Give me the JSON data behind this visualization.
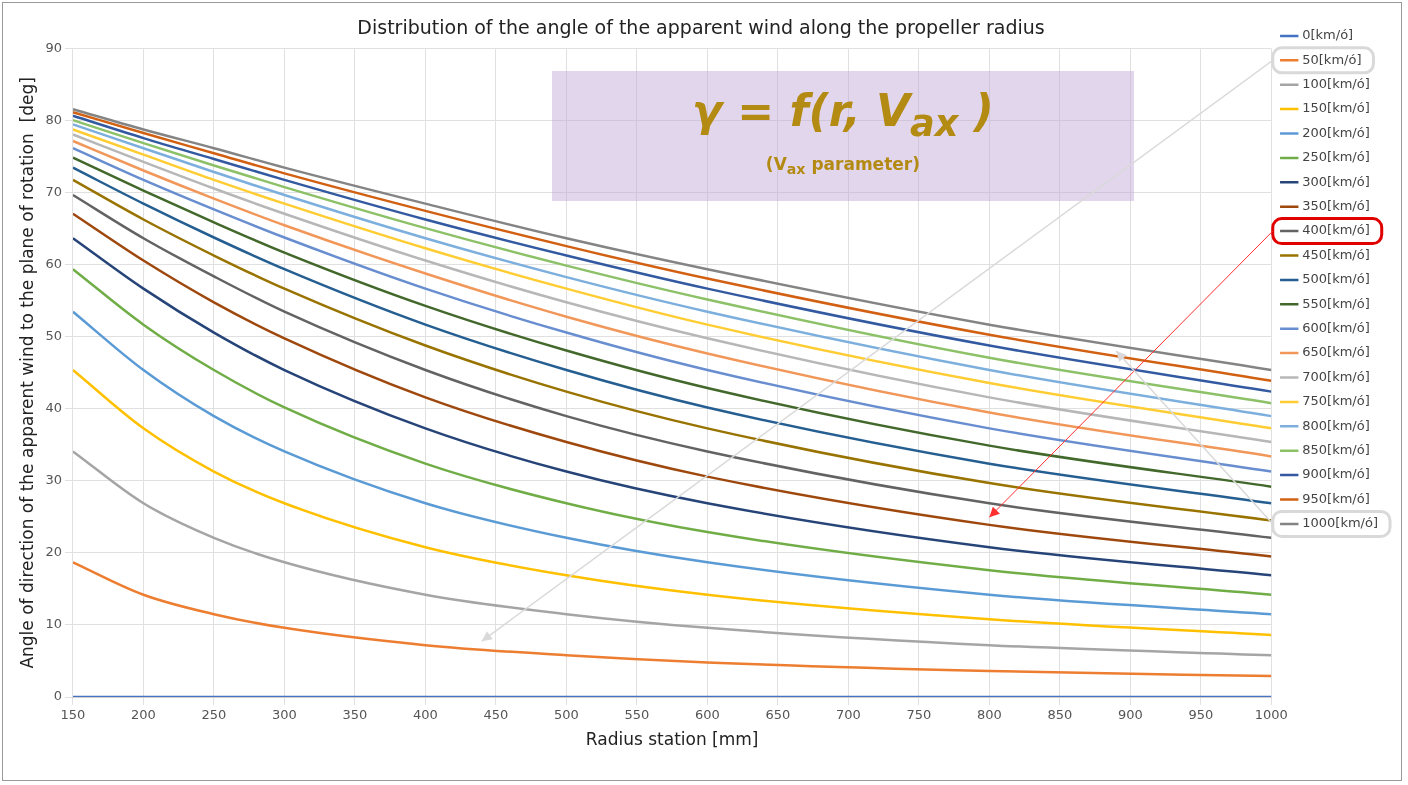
{
  "chart_data": {
    "type": "line",
    "title": "Distribution of the angle of the apparent wind along the propeller radius",
    "xlabel": "Radius station [mm]",
    "ylabel": "Angle of direction of the apparent wind to the plane of rotation  [deg]",
    "annotations": [
      "γ = f(r, V$_{ax}$ )",
      "(V$_{ax}$ parameter)"
    ],
    "x": [
      150,
      200,
      250,
      300,
      400,
      500,
      600,
      800,
      1000
    ],
    "xlim": [
      150,
      1000
    ],
    "xticks": [
      150,
      200,
      250,
      300,
      350,
      400,
      450,
      500,
      550,
      600,
      650,
      700,
      750,
      800,
      850,
      900,
      950,
      1000
    ],
    "ylim": [
      0,
      90
    ],
    "yticks": [
      0,
      10,
      20,
      30,
      40,
      50,
      60,
      70,
      80,
      90
    ],
    "grid": true,
    "legend": "right",
    "marker": "none",
    "line_style": "solid",
    "series": [
      {
        "name": "0[km/ó]",
        "color": "#4472c4",
        "values": [
          0,
          0,
          0,
          0,
          0,
          0,
          0,
          0,
          0
        ]
      },
      {
        "name": "50[km/ó]",
        "color": "#ed7d31",
        "values": [
          18.7,
          14.2,
          11.5,
          9.6,
          7.2,
          5.8,
          4.8,
          3.6,
          2.9
        ]
      },
      {
        "name": "100[km/ó]",
        "color": "#a5a5a5",
        "values": [
          34.1,
          26.9,
          22.1,
          18.7,
          14.2,
          11.5,
          9.6,
          7.2,
          5.8
        ]
      },
      {
        "name": "150[km/ó]",
        "color": "#ffc000",
        "values": [
          45.4,
          37.3,
          31.3,
          26.9,
          20.8,
          16.9,
          14.2,
          10.8,
          8.6
        ]
      },
      {
        "name": "200[km/ó]",
        "color": "#5b9bd5",
        "values": [
          53.5,
          45.4,
          39.0,
          34.1,
          26.9,
          22.1,
          18.7,
          14.2,
          11.5
        ]
      },
      {
        "name": "250[km/ó]",
        "color": "#70ad47",
        "values": [
          59.4,
          51.7,
          45.4,
          40.2,
          32.4,
          26.9,
          22.9,
          17.6,
          14.2
        ]
      },
      {
        "name": "300[km/ó]",
        "color": "#264478",
        "values": [
          63.7,
          56.7,
          50.6,
          45.4,
          37.3,
          31.3,
          26.9,
          20.8,
          16.9
        ]
      },
      {
        "name": "350[km/ó]",
        "color": "#9e480e",
        "values": [
          67.1,
          60.6,
          54.8,
          49.8,
          41.6,
          35.4,
          30.6,
          23.9,
          19.5
        ]
      },
      {
        "name": "400[km/ó]",
        "color": "#636363",
        "values": [
          69.7,
          63.7,
          58.4,
          53.5,
          45.4,
          39.0,
          34.1,
          26.9,
          22.1
        ]
      },
      {
        "name": "450[km/ó]",
        "color": "#997300",
        "values": [
          71.8,
          66.3,
          61.3,
          56.7,
          48.8,
          42.4,
          37.3,
          29.7,
          24.5
        ]
      },
      {
        "name": "500[km/ó]",
        "color": "#255e91",
        "values": [
          73.5,
          68.5,
          63.8,
          59.4,
          51.7,
          45.4,
          40.2,
          32.4,
          26.9
        ]
      },
      {
        "name": "550[km/ó]",
        "color": "#43682b",
        "values": [
          74.9,
          70.3,
          65.9,
          61.7,
          54.3,
          48.1,
          42.9,
          34.9,
          29.2
        ]
      },
      {
        "name": "600[km/ó]",
        "color": "#698ed0",
        "values": [
          76.2,
          71.8,
          67.7,
          63.8,
          56.7,
          50.6,
          45.4,
          37.3,
          31.3
        ]
      },
      {
        "name": "650[km/ó]",
        "color": "#f1975a",
        "values": [
          77.2,
          73.1,
          69.2,
          65.5,
          58.8,
          52.8,
          47.7,
          39.5,
          33.4
        ]
      },
      {
        "name": "700[km/ó]",
        "color": "#b7b7b7",
        "values": [
          78.1,
          74.3,
          70.6,
          67.1,
          60.6,
          54.8,
          49.8,
          41.6,
          35.4
        ]
      },
      {
        "name": "750[km/ó]",
        "color": "#ffcd33",
        "values": [
          78.8,
          75.3,
          71.8,
          68.5,
          62.3,
          56.7,
          51.7,
          43.6,
          37.3
        ]
      },
      {
        "name": "800[km/ó]",
        "color": "#7cafdd",
        "values": [
          79.5,
          76.2,
          72.9,
          69.7,
          63.7,
          58.3,
          53.5,
          45.4,
          39.0
        ]
      },
      {
        "name": "850[km/ó]",
        "color": "#8cc168",
        "values": [
          80.1,
          76.9,
          73.8,
          70.8,
          65.1,
          59.9,
          55.2,
          47.1,
          40.8
        ]
      },
      {
        "name": "900[km/ó]",
        "color": "#335aa1",
        "values": [
          80.7,
          77.6,
          74.7,
          71.8,
          66.3,
          61.3,
          56.7,
          48.8,
          42.4
        ]
      },
      {
        "name": "950[km/ó]",
        "color": "#d26012",
        "values": [
          81.2,
          78.3,
          75.5,
          72.7,
          67.5,
          62.6,
          58.1,
          50.3,
          43.9
        ]
      },
      {
        "name": "1000[km/ó]",
        "color": "#848484",
        "values": [
          81.6,
          78.8,
          76.2,
          73.5,
          68.5,
          63.7,
          59.4,
          51.7,
          45.4
        ]
      }
    ]
  }
}
